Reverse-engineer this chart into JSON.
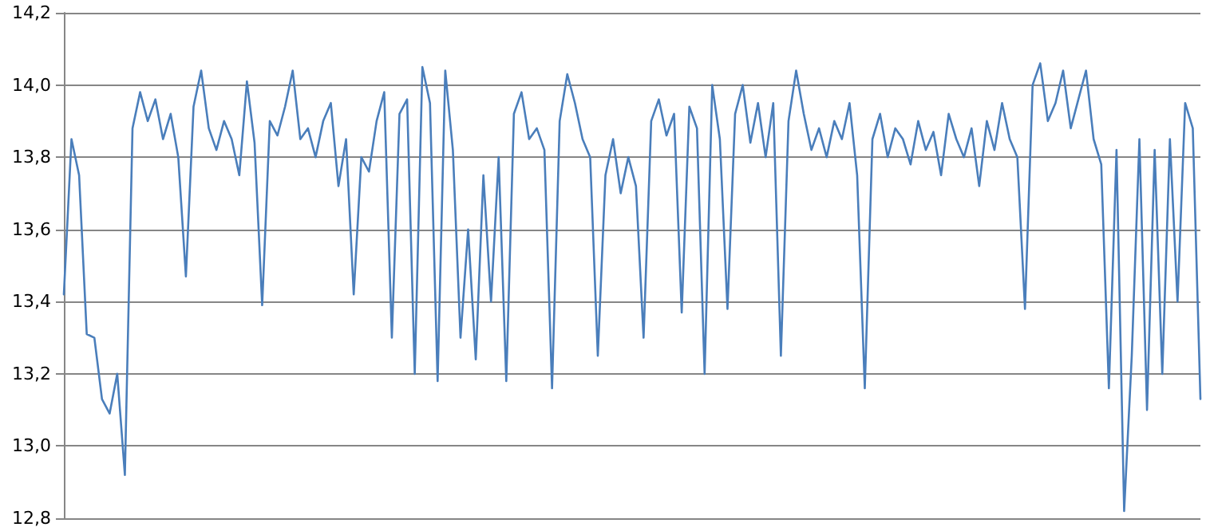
{
  "chart_data": {
    "type": "line",
    "categories": [
      null,
      null,
      null,
      null,
      null,
      null,
      null,
      null,
      null,
      null,
      null,
      null,
      null,
      null,
      null,
      null,
      null,
      null,
      null,
      null,
      null,
      null,
      null,
      null,
      null,
      null,
      null,
      null,
      null,
      null,
      null,
      null,
      null,
      null,
      null,
      null,
      null,
      null,
      null,
      null,
      null,
      null,
      null,
      null,
      null,
      null,
      null,
      null,
      null,
      null,
      null,
      null,
      null,
      null,
      null,
      null,
      null,
      null,
      null,
      null,
      null,
      null,
      null,
      null,
      null,
      null,
      null,
      null,
      null,
      null,
      null,
      null,
      null,
      null,
      null,
      null,
      null,
      null,
      null,
      null,
      null,
      null,
      null,
      null,
      null,
      null,
      null,
      null,
      null,
      null,
      null,
      null,
      null,
      null,
      null,
      null,
      null,
      null,
      null,
      null,
      null,
      null,
      null,
      null,
      null,
      null,
      null,
      null,
      null,
      null,
      null,
      null,
      null,
      null,
      null,
      null,
      null,
      null,
      null,
      null,
      null,
      null,
      null,
      null,
      null,
      null,
      null,
      null,
      null,
      null,
      null,
      null,
      null,
      null,
      null,
      null,
      null,
      null,
      null,
      null,
      null,
      null,
      null,
      null,
      null,
      null,
      null,
      null,
      null,
      null
    ],
    "series": [
      {
        "color": "#4a7ebb",
        "values": [
          13.42,
          13.85,
          13.75,
          13.31,
          13.3,
          13.13,
          13.09,
          13.2,
          12.92,
          13.88,
          13.98,
          13.9,
          13.96,
          13.85,
          13.92,
          13.8,
          13.47,
          13.94,
          14.04,
          13.88,
          13.82,
          13.9,
          13.85,
          13.75,
          14.01,
          13.84,
          13.39,
          13.9,
          13.86,
          13.94,
          14.04,
          13.85,
          13.88,
          13.8,
          13.9,
          13.95,
          13.72,
          13.85,
          13.42,
          13.8,
          13.76,
          13.9,
          13.98,
          13.3,
          13.92,
          13.96,
          13.2,
          14.05,
          13.95,
          13.18,
          14.04,
          13.82,
          13.3,
          13.6,
          13.24,
          13.75,
          13.4,
          13.8,
          13.18,
          13.92,
          13.98,
          13.85,
          13.88,
          13.82,
          13.16,
          13.9,
          14.03,
          13.95,
          13.85,
          13.8,
          13.25,
          13.75,
          13.85,
          13.7,
          13.8,
          13.72,
          13.3,
          13.9,
          13.96,
          13.86,
          13.92,
          13.37,
          13.94,
          13.88,
          13.2,
          14.0,
          13.85,
          13.38,
          13.92,
          14.0,
          13.84,
          13.95,
          13.8,
          13.95,
          13.25,
          13.9,
          14.04,
          13.92,
          13.82,
          13.88,
          13.8,
          13.9,
          13.85,
          13.95,
          13.75,
          13.16,
          13.85,
          13.92,
          13.8,
          13.88,
          13.85,
          13.78,
          13.9,
          13.82,
          13.87,
          13.75,
          13.92,
          13.85,
          13.8,
          13.88,
          13.72,
          13.9,
          13.82,
          13.95,
          13.85,
          13.8,
          13.38,
          14.0,
          14.06,
          13.9,
          13.95,
          14.04,
          13.88,
          13.96,
          14.04,
          13.85,
          13.78,
          13.16,
          13.82,
          12.82,
          13.25,
          13.85,
          13.1,
          13.82,
          13.2,
          13.85,
          13.4,
          13.95,
          13.88,
          13.13
        ]
      }
    ],
    "ylim": [
      12.8,
      14.2
    ],
    "yticks": [
      {
        "value": 12.8,
        "label": "12,8"
      },
      {
        "value": 13.0,
        "label": "13,0"
      },
      {
        "value": 13.2,
        "label": "13,2"
      },
      {
        "value": 13.4,
        "label": "13,4"
      },
      {
        "value": 13.6,
        "label": "13,6"
      },
      {
        "value": 13.8,
        "label": "13,8"
      },
      {
        "value": 14.0,
        "label": "14,0"
      },
      {
        "value": 14.2,
        "label": "14,2"
      }
    ],
    "grid": "y",
    "tick_labels": "y",
    "line_style": "solid"
  }
}
